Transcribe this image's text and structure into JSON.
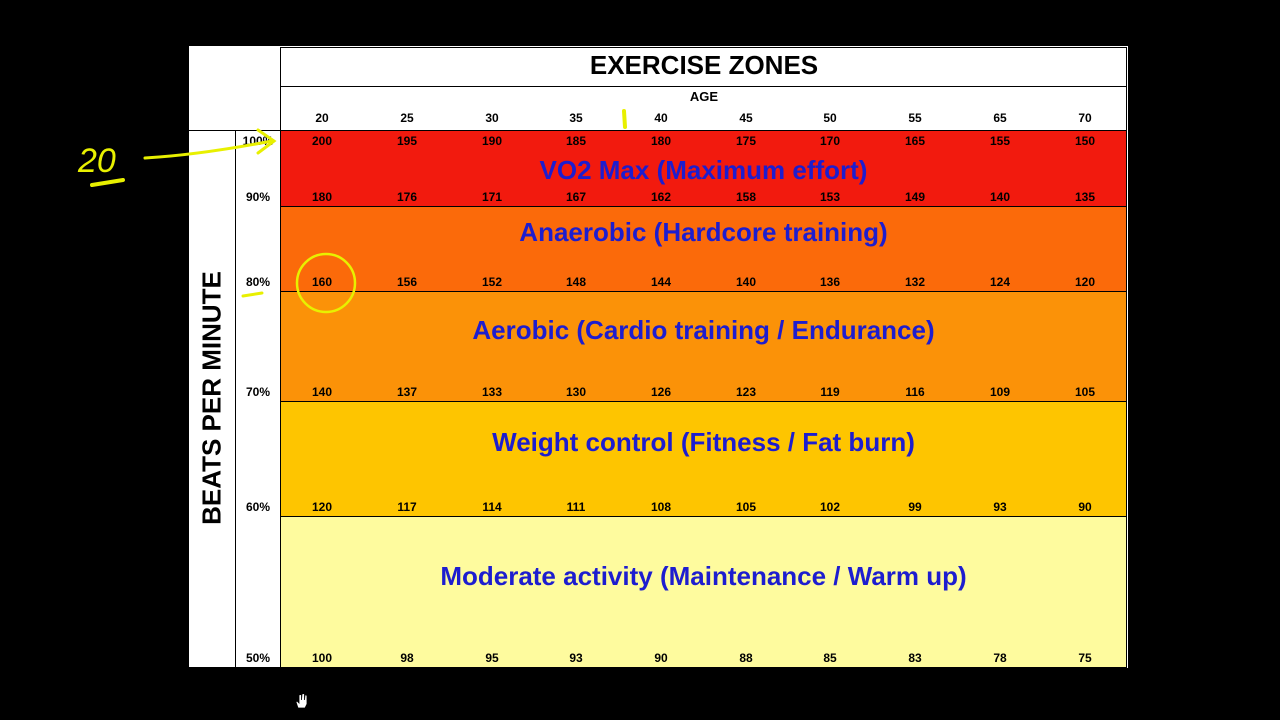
{
  "chart_data": {
    "type": "table",
    "title": "EXERCISE ZONES",
    "xlabel": "AGE",
    "ylabel": "BEATS PER MINUTE",
    "ages": [
      20,
      25,
      30,
      35,
      40,
      45,
      50,
      55,
      65,
      70
    ],
    "percentages": [
      "100%",
      "90%",
      "80%",
      "70%",
      "60%",
      "50%"
    ],
    "bpm_rows": [
      {
        "percent": "100%",
        "values": [
          200,
          195,
          190,
          185,
          180,
          175,
          170,
          165,
          155,
          150
        ]
      },
      {
        "percent": "90%",
        "values": [
          180,
          176,
          171,
          167,
          162,
          158,
          153,
          149,
          140,
          135
        ]
      },
      {
        "percent": "80%",
        "values": [
          160,
          156,
          152,
          148,
          144,
          140,
          136,
          132,
          124,
          120
        ]
      },
      {
        "percent": "70%",
        "values": [
          140,
          137,
          133,
          130,
          126,
          123,
          119,
          116,
          109,
          105
        ]
      },
      {
        "percent": "60%",
        "values": [
          120,
          117,
          114,
          111,
          108,
          105,
          102,
          99,
          93,
          90
        ]
      },
      {
        "percent": "50%",
        "values": [
          100,
          98,
          95,
          93,
          90,
          88,
          85,
          83,
          78,
          75
        ]
      }
    ],
    "zones": [
      {
        "name": "VO2 Max (Maximum effort)",
        "from": "90%",
        "to": "100%",
        "color": "#f21a0e"
      },
      {
        "name": "Anaerobic (Hardcore training)",
        "from": "80%",
        "to": "90%",
        "color": "#fb6a0a"
      },
      {
        "name": "Aerobic (Cardio training / Endurance)",
        "from": "70%",
        "to": "80%",
        "color": "#fb9208"
      },
      {
        "name": "Weight control (Fitness / Fat burn)",
        "from": "60%",
        "to": "70%",
        "color": "#fec500"
      },
      {
        "name": "Moderate activity (Maintenance / Warm up)",
        "from": "50%",
        "to": "60%",
        "color": "#fefb9e"
      }
    ]
  },
  "annotations": {
    "handwritten_age": "20",
    "ink_color": "#e8f000"
  },
  "colors": {
    "zone_text": "#1d1dcf",
    "background": "#000000",
    "panel": "#ffffff"
  }
}
